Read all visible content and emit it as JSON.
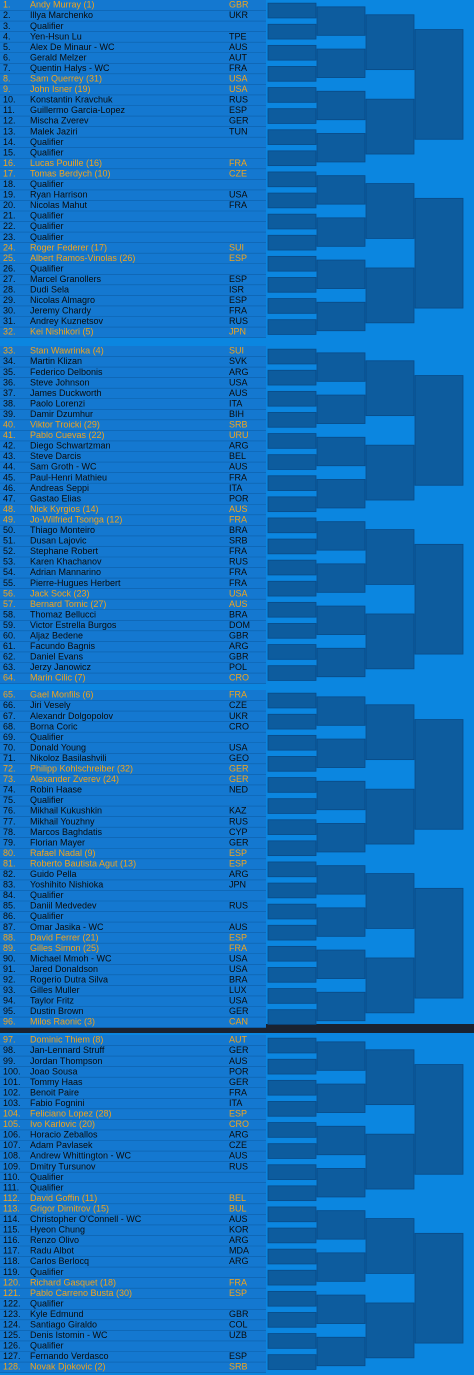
{
  "sections": [
    {
      "rows": [
        [
          "1.",
          "Andy Murray (1)",
          "GBR"
        ],
        [
          "2.",
          "Illya Marchenko",
          "UKR"
        ],
        [
          "3.",
          "Qualifier"
        ],
        [
          "4.",
          "Yen-Hsun Lu",
          "TPE"
        ],
        [
          "5.",
          "Alex De Minaur - WC",
          "AUS"
        ],
        [
          "6.",
          "Gerald Melzer",
          "AUT"
        ],
        [
          "7.",
          "Quentin Halys - WC",
          "FRA"
        ],
        [
          "8.",
          "Sam Querrey (31)",
          "USA"
        ],
        [
          "9.",
          "John Isner (19)",
          "USA"
        ],
        [
          "10.",
          "Konstantin Kravchuk",
          "RUS"
        ],
        [
          "11.",
          "Guillermo Garcia-Lopez",
          "ESP"
        ],
        [
          "12.",
          "Mischa Zverev",
          "GER"
        ],
        [
          "13.",
          "Malek Jaziri",
          "TUN"
        ],
        [
          "14.",
          "Qualifier"
        ],
        [
          "15.",
          "Qualifier"
        ],
        [
          "16.",
          "Lucas Pouille (16)",
          "FRA"
        ],
        [
          "17.",
          "Tomas Berdych (10)",
          "CZE"
        ],
        [
          "18.",
          "Qualifier"
        ],
        [
          "19.",
          "Ryan Harrison",
          "USA"
        ],
        [
          "20.",
          "Nicolas Mahut",
          "FRA"
        ],
        [
          "21.",
          "Qualifier"
        ],
        [
          "22.",
          "Qualifier"
        ],
        [
          "23.",
          "Qualifier"
        ],
        [
          "24.",
          "Roger Federer (17)",
          "SUI"
        ],
        [
          "25.",
          "Albert Ramos-Vinolas (26)",
          "ESP"
        ],
        [
          "26.",
          "Qualifier"
        ],
        [
          "27.",
          "Marcel Granollers",
          "ESP"
        ],
        [
          "28.",
          "Dudi Sela",
          "ISR"
        ],
        [
          "29.",
          "Nicolas Almagro",
          "ESP"
        ],
        [
          "30.",
          "Jeremy Chardy",
          "FRA"
        ],
        [
          "31.",
          "Andrey Kuznetsov",
          "RUS"
        ],
        [
          "32.",
          "Kei Nishikori (5)",
          "JPN"
        ]
      ]
    },
    {
      "rows": [
        [
          "33.",
          "Stan Wawrinka (4)",
          "SUI"
        ],
        [
          "34.",
          "Martin Klizan",
          "SVK"
        ],
        [
          "35.",
          "Federico Delbonis",
          "ARG"
        ],
        [
          "36.",
          "Steve Johnson",
          "USA"
        ],
        [
          "37.",
          "James Duckworth",
          "AUS"
        ],
        [
          "38.",
          "Paolo Lorenzi",
          "ITA"
        ],
        [
          "39.",
          "Damir Dzumhur",
          "BIH"
        ],
        [
          "40.",
          "Viktor Troicki (29)",
          "SRB"
        ],
        [
          "41.",
          "Pablo Cuevas (22)",
          "URU"
        ],
        [
          "42.",
          "Diego Schwartzman",
          "ARG"
        ],
        [
          "43.",
          "Steve Darcis",
          "BEL"
        ],
        [
          "44.",
          "Sam Groth - WC",
          "AUS"
        ],
        [
          "45.",
          "Paul-Henri Mathieu",
          "FRA"
        ],
        [
          "46.",
          "Andreas Seppi",
          "ITA"
        ],
        [
          "47.",
          "Gastao Elias",
          "POR"
        ],
        [
          "48.",
          "Nick Kyrgios (14)",
          "AUS"
        ],
        [
          "49.",
          "Jo-Wilfried Tsonga (12)",
          "FRA"
        ],
        [
          "50.",
          "Thiago Monteiro",
          "BRA"
        ],
        [
          "51.",
          "Dusan Lajovic",
          "SRB"
        ],
        [
          "52.",
          "Stephane Robert",
          "FRA"
        ],
        [
          "53.",
          "Karen Khachanov",
          "RUS"
        ],
        [
          "54.",
          "Adrian Mannarino",
          "FRA"
        ],
        [
          "55.",
          "Pierre-Hugues Herbert",
          "FRA"
        ],
        [
          "56.",
          "Jack Sock (23)",
          "USA"
        ],
        [
          "57.",
          "Bernard Tomic (27)",
          "AUS"
        ],
        [
          "58.",
          "Thomaz Bellucci",
          "BRA"
        ],
        [
          "59.",
          "Victor Estrella Burgos",
          "DOM"
        ],
        [
          "60.",
          "Aljaz Bedene",
          "GBR"
        ],
        [
          "61.",
          "Facundo Bagnis",
          "ARG"
        ],
        [
          "62.",
          "Daniel Evans",
          "GBR"
        ],
        [
          "63.",
          "Jerzy Janowicz",
          "POL"
        ],
        [
          "64.",
          "Marin Cilic (7)",
          "CRO"
        ]
      ]
    },
    {
      "rows": [
        [
          "65.",
          "Gael Monfils (6)",
          "FRA"
        ],
        [
          "66.",
          "Jiri Vesely",
          "CZE"
        ],
        [
          "67.",
          "Alexandr Dolgopolov",
          "UKR"
        ],
        [
          "68.",
          "Borna Coric",
          "CRO"
        ],
        [
          "69.",
          "Qualifier"
        ],
        [
          "70.",
          "Donald Young",
          "USA"
        ],
        [
          "71.",
          "Nikoloz Basilashvili",
          "GEO"
        ],
        [
          "72.",
          "Philipp Kohlschreiber (32)",
          "GER"
        ],
        [
          "73.",
          "Alexander Zverev (24)",
          "GER"
        ],
        [
          "74.",
          "Robin Haase",
          "NED"
        ],
        [
          "75.",
          "Qualifier"
        ],
        [
          "76.",
          "Mikhail Kukushkin",
          "KAZ"
        ],
        [
          "77.",
          "Mikhail Youzhny",
          "RUS"
        ],
        [
          "78.",
          "Marcos Baghdatis",
          "CYP"
        ],
        [
          "79.",
          "Florian Mayer",
          "GER"
        ],
        [
          "80.",
          "Rafael Nadal (9)",
          "ESP"
        ],
        [
          "81.",
          "Roberto Bautista Agut (13)",
          "ESP"
        ],
        [
          "82.",
          "Guido Pella",
          "ARG"
        ],
        [
          "83.",
          "Yoshihito Nishioka",
          "JPN"
        ],
        [
          "84.",
          "Qualifier"
        ],
        [
          "85.",
          "Daniil Medvedev",
          "RUS"
        ],
        [
          "86.",
          "Qualifier"
        ],
        [
          "87.",
          "Omar Jasika - WC",
          "AUS"
        ],
        [
          "88.",
          "David Ferrer (21)",
          "ESP"
        ],
        [
          "89.",
          "Gilles Simon (25)",
          "FRA"
        ],
        [
          "90.",
          "Michael Mmoh - WC",
          "USA"
        ],
        [
          "91.",
          "Jared Donaldson",
          "USA"
        ],
        [
          "92.",
          "Rogerio Dutra Silva",
          "BRA"
        ],
        [
          "93.",
          "Gilles Muller",
          "LUX"
        ],
        [
          "94.",
          "Taylor Fritz",
          "USA"
        ],
        [
          "95.",
          "Dustin Brown",
          "GER"
        ],
        [
          "96.",
          "Milos Raonic (3)",
          "CAN"
        ]
      ]
    },
    {
      "rows": [
        [
          "97.",
          "Dominic Thiem (8)",
          "AUT"
        ],
        [
          "98.",
          "Jan-Lennard Struff",
          "GER"
        ],
        [
          "99.",
          "Jordan Thompson",
          "AUS"
        ],
        [
          "100.",
          "Joao Sousa",
          "POR"
        ],
        [
          "101.",
          "Tommy Haas",
          "GER"
        ],
        [
          "102.",
          "Benoit Paire",
          "FRA"
        ],
        [
          "103.",
          "Fabio Fognini",
          "ITA"
        ],
        [
          "104.",
          "Feliciano Lopez (28)",
          "ESP"
        ],
        [
          "105.",
          "Ivo Karlovic (20)",
          "CRO"
        ],
        [
          "106.",
          "Horacio Zeballos",
          "ARG"
        ],
        [
          "107.",
          "Adam Pavlasek",
          "CZE"
        ],
        [
          "108.",
          "Andrew Whittington - WC",
          "AUS"
        ],
        [
          "109.",
          "Dmitry Tursunov",
          "RUS"
        ],
        [
          "110.",
          "Qualifier"
        ],
        [
          "111.",
          "Qualifier"
        ],
        [
          "112.",
          "David Goffin (11)",
          "BEL"
        ],
        [
          "113.",
          "Grigor Dimitrov (15)",
          "BUL"
        ],
        [
          "114.",
          "Christopher O'Connell - WC",
          "AUS"
        ],
        [
          "115.",
          "Hyeon Chung",
          "KOR"
        ],
        [
          "116.",
          "Renzo Olivo",
          "ARG"
        ],
        [
          "117.",
          "Radu Albot",
          "MDA"
        ],
        [
          "118.",
          "Carlos Berlocq",
          "ARG"
        ],
        [
          "119.",
          "Qualifier"
        ],
        [
          "120.",
          "Richard Gasquet (18)",
          "FRA"
        ],
        [
          "121.",
          "Pablo Carreno Busta (30)",
          "ESP"
        ],
        [
          "122.",
          "Qualifier"
        ],
        [
          "123.",
          "Kyle Edmund",
          "GBR"
        ],
        [
          "124.",
          "Santiago Giraldo",
          "COL"
        ],
        [
          "125.",
          "Denis Istomin - WC",
          "UZB"
        ],
        [
          "126.",
          "Qualifier"
        ],
        [
          "127.",
          "Fernando Verdasco",
          "ESP"
        ],
        [
          "128.",
          "Novak Djokovic (2)",
          "SRB"
        ]
      ]
    }
  ]
}
